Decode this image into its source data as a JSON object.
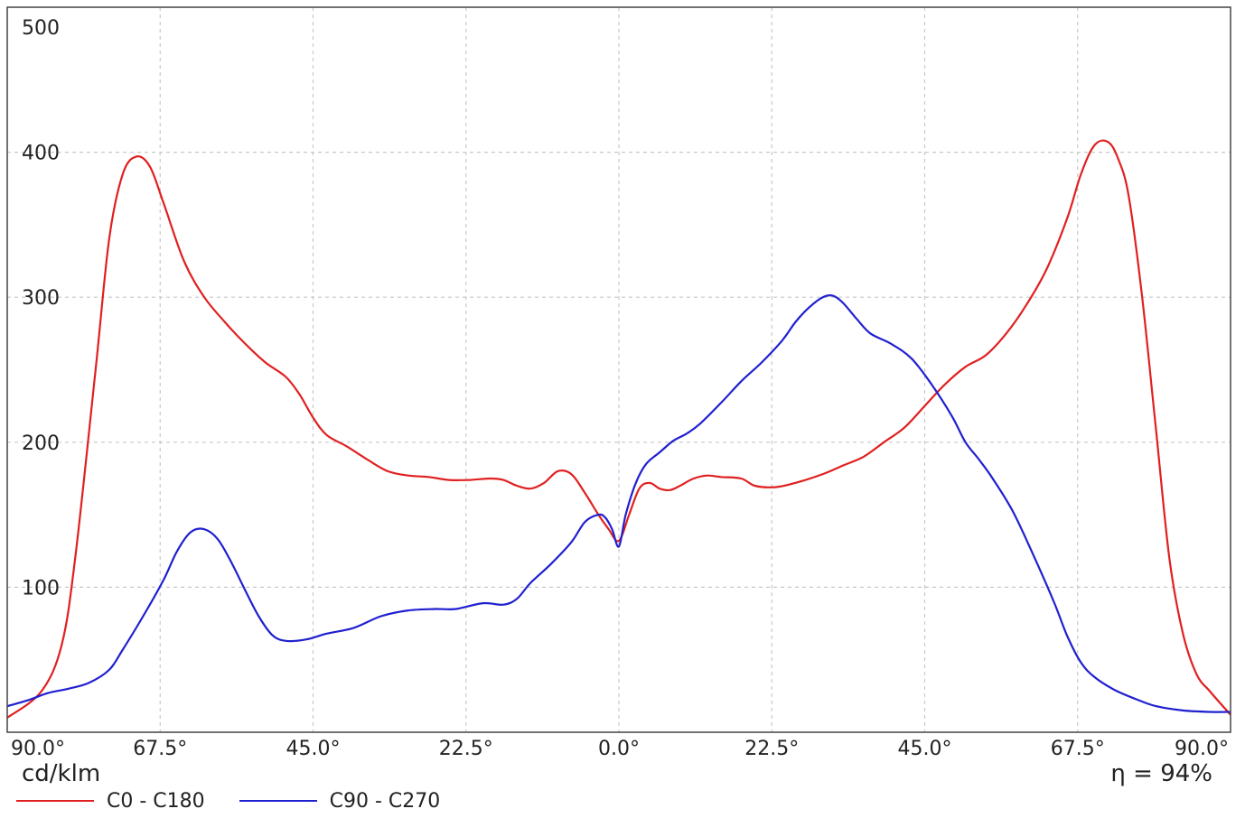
{
  "chart_data": {
    "type": "line",
    "ylabel": "cd/klm",
    "ylim": [
      0,
      500
    ],
    "yticks": [
      100,
      200,
      300,
      400,
      500
    ],
    "xlim": [
      -90,
      90
    ],
    "x_ticks": [
      -90,
      -67.5,
      -45,
      -22.5,
      0,
      22.5,
      45,
      67.5,
      90
    ],
    "x_tick_labels": [
      "90.0°",
      "67.5°",
      "45.0°",
      "22.5°",
      "0.0°",
      "22.5°",
      "45.0°",
      "67.5°",
      "90.0°"
    ],
    "grid": true,
    "legend_position": "bottom-left",
    "annotation": "η = 94%",
    "series": [
      {
        "name": "C0 - C180",
        "color": "#e02020",
        "points": [
          [
            -90,
            10
          ],
          [
            -85,
            28
          ],
          [
            -82,
            60
          ],
          [
            -80,
            120
          ],
          [
            -77,
            250
          ],
          [
            -75,
            340
          ],
          [
            -73,
            385
          ],
          [
            -71,
            397
          ],
          [
            -69,
            390
          ],
          [
            -67,
            365
          ],
          [
            -64,
            325
          ],
          [
            -61,
            300
          ],
          [
            -58,
            283
          ],
          [
            -55,
            268
          ],
          [
            -52,
            255
          ],
          [
            -49,
            245
          ],
          [
            -47,
            233
          ],
          [
            -45,
            217
          ],
          [
            -43,
            205
          ],
          [
            -40,
            197
          ],
          [
            -37,
            188
          ],
          [
            -34,
            180
          ],
          [
            -31,
            177
          ],
          [
            -28,
            176
          ],
          [
            -25,
            174
          ],
          [
            -22,
            174
          ],
          [
            -19,
            175
          ],
          [
            -17,
            174
          ],
          [
            -15,
            170
          ],
          [
            -13,
            168
          ],
          [
            -11,
            172
          ],
          [
            -9,
            180
          ],
          [
            -7,
            178
          ],
          [
            -5,
            165
          ],
          [
            -3,
            150
          ],
          [
            -1.5,
            140
          ],
          [
            0,
            132
          ],
          [
            1.5,
            150
          ],
          [
            3,
            168
          ],
          [
            4.5,
            172
          ],
          [
            6,
            168
          ],
          [
            7.5,
            167
          ],
          [
            9,
            170
          ],
          [
            11,
            175
          ],
          [
            13,
            177
          ],
          [
            15,
            176
          ],
          [
            18,
            175
          ],
          [
            20,
            170
          ],
          [
            23,
            169
          ],
          [
            26,
            172
          ],
          [
            30,
            178
          ],
          [
            33,
            184
          ],
          [
            36,
            190
          ],
          [
            39,
            200
          ],
          [
            42,
            210
          ],
          [
            45,
            225
          ],
          [
            48,
            240
          ],
          [
            51,
            252
          ],
          [
            54,
            260
          ],
          [
            57,
            275
          ],
          [
            60,
            295
          ],
          [
            63,
            320
          ],
          [
            66,
            355
          ],
          [
            68,
            385
          ],
          [
            70,
            405
          ],
          [
            72,
            407
          ],
          [
            73.5,
            395
          ],
          [
            75,
            370
          ],
          [
            77,
            300
          ],
          [
            79,
            210
          ],
          [
            81,
            120
          ],
          [
            83,
            68
          ],
          [
            85,
            40
          ],
          [
            87,
            28
          ],
          [
            90,
            12
          ]
        ]
      },
      {
        "name": "C90 - C270",
        "color": "#2020d0",
        "points": [
          [
            -90,
            18
          ],
          [
            -87,
            22
          ],
          [
            -84,
            27
          ],
          [
            -81,
            30
          ],
          [
            -78,
            34
          ],
          [
            -75,
            43
          ],
          [
            -73,
            57
          ],
          [
            -70,
            80
          ],
          [
            -67,
            105
          ],
          [
            -65,
            125
          ],
          [
            -63,
            138
          ],
          [
            -61,
            140
          ],
          [
            -59,
            133
          ],
          [
            -57,
            117
          ],
          [
            -55,
            98
          ],
          [
            -53,
            80
          ],
          [
            -51,
            67
          ],
          [
            -49,
            63
          ],
          [
            -46,
            64
          ],
          [
            -43,
            68
          ],
          [
            -39,
            72
          ],
          [
            -35,
            80
          ],
          [
            -31,
            84
          ],
          [
            -27,
            85
          ],
          [
            -24,
            85
          ],
          [
            -20,
            89
          ],
          [
            -17,
            88
          ],
          [
            -15,
            92
          ],
          [
            -13,
            103
          ],
          [
            -10,
            116
          ],
          [
            -7,
            131
          ],
          [
            -5,
            145
          ],
          [
            -3,
            150
          ],
          [
            -2,
            148
          ],
          [
            -1,
            140
          ],
          [
            0,
            128
          ],
          [
            1,
            150
          ],
          [
            2.5,
            172
          ],
          [
            4,
            185
          ],
          [
            6,
            193
          ],
          [
            8,
            201
          ],
          [
            10,
            206
          ],
          [
            12,
            213
          ],
          [
            15,
            227
          ],
          [
            18,
            242
          ],
          [
            21,
            255
          ],
          [
            24,
            270
          ],
          [
            26,
            283
          ],
          [
            28,
            293
          ],
          [
            30,
            300
          ],
          [
            31.5,
            301
          ],
          [
            33,
            296
          ],
          [
            35,
            285
          ],
          [
            37,
            275
          ],
          [
            40,
            268
          ],
          [
            43,
            258
          ],
          [
            46,
            240
          ],
          [
            49,
            218
          ],
          [
            51,
            200
          ],
          [
            53,
            188
          ],
          [
            55,
            175
          ],
          [
            58,
            152
          ],
          [
            61,
            122
          ],
          [
            64,
            90
          ],
          [
            66,
            66
          ],
          [
            68,
            48
          ],
          [
            70,
            38
          ],
          [
            73,
            29
          ],
          [
            76,
            23
          ],
          [
            79,
            18
          ],
          [
            83,
            15
          ],
          [
            87,
            14
          ],
          [
            90,
            14
          ]
        ]
      }
    ]
  }
}
